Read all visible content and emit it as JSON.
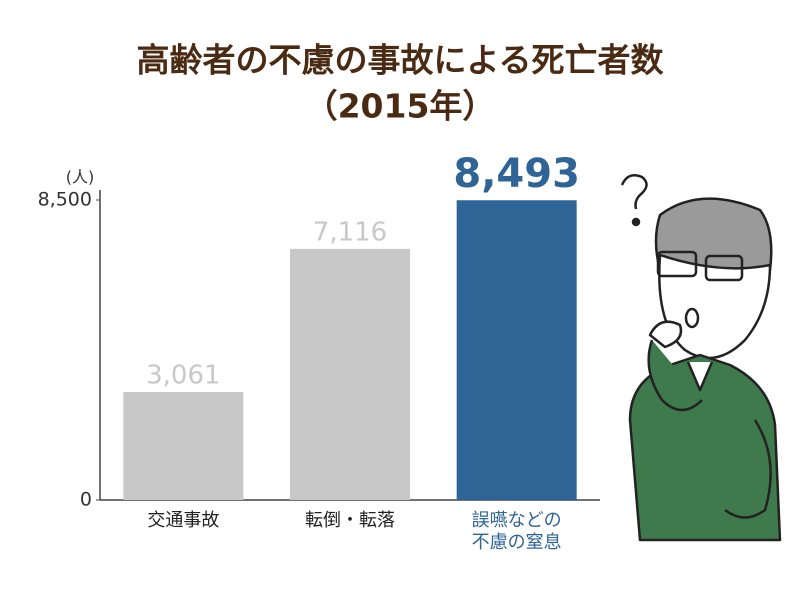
{
  "chart_data": {
    "type": "bar",
    "title": "高齢者の不慮の事故による死亡者数",
    "subtitle": "（2015年）",
    "y_unit": "(人)",
    "categories": [
      "交通事故",
      "転倒・転落",
      "誤嚥などの不慮の窒息"
    ],
    "values": [
      3061,
      7116,
      8493
    ],
    "value_labels": [
      "3,061",
      "7,116",
      "8,493"
    ],
    "colors": [
      "#c8c8c8",
      "#c8c8c8",
      "#2f6496"
    ],
    "highlight": 2,
    "ylim": [
      0,
      8500
    ],
    "yticks": [
      0,
      {
        "value": 8500,
        "label": "8,500"
      }
    ],
    "grid": false
  }
}
